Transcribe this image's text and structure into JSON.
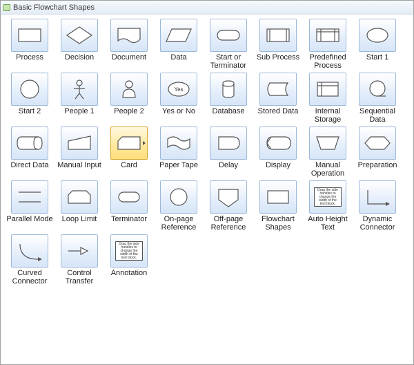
{
  "window": {
    "title": "Basic Flowchart Shapes"
  },
  "style": {
    "tile_bg_top": "#ffffff",
    "tile_bg_bottom": "#d6e5f8",
    "tile_border": "#9db8d8",
    "selected_bg_top": "#fff8df",
    "selected_bg_bottom": "#ffdf7a",
    "selected_border": "#d9a62e",
    "shape_stroke": "#555555",
    "shape_fill": "#ffffff",
    "label_color": "#222222",
    "label_fontsize": 11
  },
  "selected_index": 18,
  "shapes": [
    {
      "id": "process",
      "label": "Process"
    },
    {
      "id": "decision",
      "label": "Decision"
    },
    {
      "id": "document",
      "label": "Document"
    },
    {
      "id": "data",
      "label": "Data"
    },
    {
      "id": "start-or-term",
      "label": "Start or Terminator"
    },
    {
      "id": "sub-process",
      "label": "Sub Process"
    },
    {
      "id": "predef-process",
      "label": "Predefined Process"
    },
    {
      "id": "start1",
      "label": "Start 1"
    },
    {
      "id": "start2",
      "label": "Start 2"
    },
    {
      "id": "people1",
      "label": "People 1"
    },
    {
      "id": "people2",
      "label": "People 2"
    },
    {
      "id": "yes-or-no",
      "label": "Yes or No",
      "inner_text": "Yes"
    },
    {
      "id": "database",
      "label": "Database"
    },
    {
      "id": "stored-data",
      "label": "Stored Data"
    },
    {
      "id": "internal-storage",
      "label": "Internal Storage"
    },
    {
      "id": "sequential-data",
      "label": "Sequential Data"
    },
    {
      "id": "direct-data",
      "label": "Direct Data"
    },
    {
      "id": "manual-input",
      "label": "Manual Input"
    },
    {
      "id": "card",
      "label": "Card"
    },
    {
      "id": "paper-tape",
      "label": "Paper Tape"
    },
    {
      "id": "delay",
      "label": "Delay"
    },
    {
      "id": "display",
      "label": "Display"
    },
    {
      "id": "manual-op",
      "label": "Manual Operation"
    },
    {
      "id": "preparation",
      "label": "Preparation"
    },
    {
      "id": "parallel-mode",
      "label": "Parallel Mode"
    },
    {
      "id": "loop-limit",
      "label": "Loop Limit"
    },
    {
      "id": "terminator",
      "label": "Terminator"
    },
    {
      "id": "onpage-ref",
      "label": "On-page Reference"
    },
    {
      "id": "offpage-ref",
      "label": "Off-page Reference"
    },
    {
      "id": "flowchart-shapes",
      "label": "Flowchart Shapes"
    },
    {
      "id": "auto-height-text",
      "label": "Auto Height Text",
      "inner_text": "Drag the side handles to change the width of the text block."
    },
    {
      "id": "dynamic-connector",
      "label": "Dynamic Connector"
    },
    {
      "id": "curved-connector",
      "label": "Curved Connector"
    },
    {
      "id": "control-transfer",
      "label": "Control Transfer"
    },
    {
      "id": "annotation",
      "label": "Annotation",
      "inner_text": "Drag the side handles to change the width of the text block."
    }
  ]
}
